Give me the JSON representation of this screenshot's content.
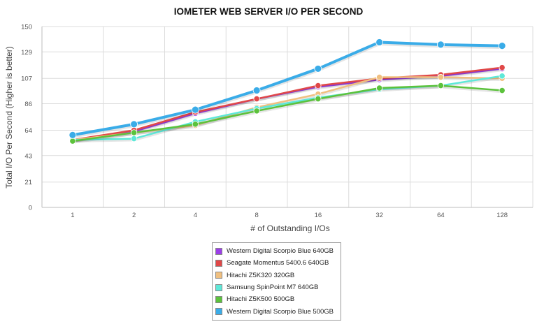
{
  "chart_data": {
    "type": "line",
    "title": "IOMETER WEB SERVER I/O PER SECOND",
    "xlabel": "# of Outstanding I/Os",
    "ylabel": "Total I/O Per Second (Higher is better)",
    "categories": [
      "1",
      "2",
      "4",
      "8",
      "16",
      "32",
      "64",
      "128"
    ],
    "y_ticks": [
      0,
      21,
      43,
      64,
      86,
      107,
      129,
      150
    ],
    "ylim": [
      0,
      150
    ],
    "grid": true,
    "legend_position": "bottom",
    "series": [
      {
        "name": "Western Digital Scorpio Blue 640GB",
        "color": "#9b3ee8",
        "values": [
          56,
          63,
          78,
          90,
          100,
          106,
          109,
          115
        ]
      },
      {
        "name": "Seagate Momentus 5400.6 640GB",
        "color": "#e04848",
        "values": [
          56,
          64,
          79,
          90,
          101,
          107,
          110,
          116
        ]
      },
      {
        "name": "Hitachi Z5K320 320GB",
        "color": "#f0c080",
        "values": [
          56,
          62,
          68,
          83,
          94,
          108,
          108,
          107
        ]
      },
      {
        "name": "Samsung SpinPoint M7 640GB",
        "color": "#5ee8d8",
        "values": [
          56,
          57,
          71,
          82,
          91,
          98,
          101,
          109
        ]
      },
      {
        "name": "Hitachi Z5K500 500GB",
        "color": "#5cc23c",
        "values": [
          55,
          62,
          69,
          80,
          90,
          99,
          101,
          97
        ]
      },
      {
        "name": "Western Digital Scorpio Blue 500GB",
        "color": "#3aace8",
        "values": [
          60,
          69,
          81,
          97,
          115,
          137,
          135,
          134
        ]
      }
    ]
  }
}
